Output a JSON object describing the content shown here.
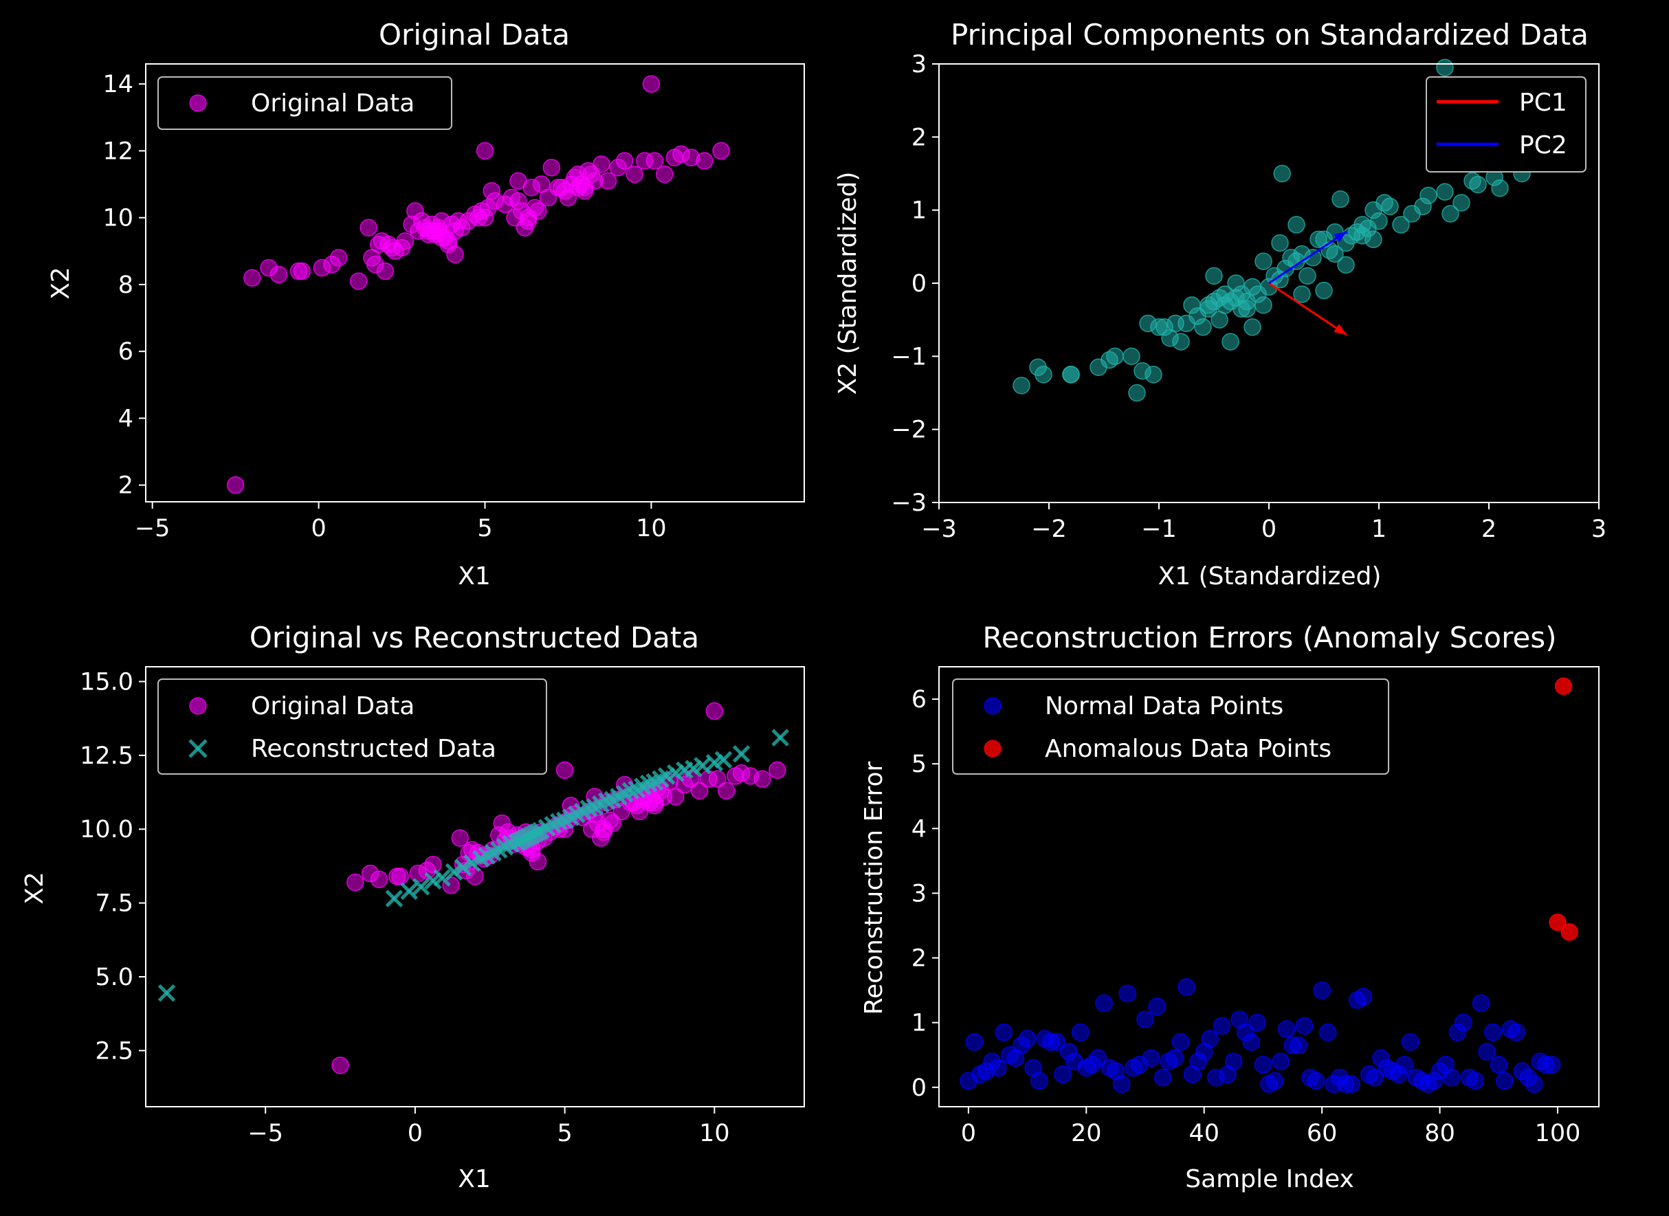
{
  "chart_data": [
    {
      "type": "scatter",
      "title": "Original Data",
      "xlabel": "X1",
      "ylabel": "X2",
      "xlim": [
        -5.2,
        14.6
      ],
      "ylim": [
        1.5,
        14.6
      ],
      "xticks": [
        -5,
        0,
        5,
        10
      ],
      "yticks": [
        2,
        4,
        6,
        8,
        10,
        12,
        14
      ],
      "legend_position": "upper-left",
      "series": [
        {
          "name": "Original Data",
          "marker": "circle",
          "color": "#ff00ff",
          "x": [
            -2.0,
            -1.5,
            -1.2,
            -0.6,
            -0.5,
            0.1,
            0.4,
            0.6,
            1.2,
            1.5,
            1.6,
            1.7,
            1.9,
            2.0,
            2.1,
            2.3,
            2.5,
            2.6,
            2.8,
            2.9,
            3.0,
            3.1,
            3.2,
            3.3,
            3.4,
            3.5,
            3.6,
            3.7,
            3.8,
            3.9,
            4.0,
            4.1,
            4.2,
            4.3,
            4.5,
            4.7,
            4.9,
            5.0,
            5.1,
            5.2,
            5.3,
            5.6,
            5.8,
            6.0,
            6.1,
            6.2,
            6.3,
            6.4,
            6.5,
            6.7,
            6.9,
            7.0,
            7.2,
            7.4,
            7.5,
            7.6,
            7.7,
            7.8,
            7.9,
            8.0,
            8.1,
            8.2,
            8.3,
            8.5,
            8.7,
            9.0,
            9.2,
            9.5,
            9.8,
            10.1,
            10.4,
            10.7,
            10.9,
            11.2,
            11.6,
            12.1,
            5.0,
            10.0,
            -2.5,
            3.5,
            3.7,
            3.9,
            3.6,
            4.1,
            5.9,
            6.3,
            7.8,
            8.0,
            2.2,
            3.3,
            4.8,
            6.0,
            6.6,
            7.3,
            1.8
          ],
          "y": [
            8.2,
            8.5,
            8.3,
            8.4,
            8.4,
            8.5,
            8.6,
            8.8,
            8.1,
            9.7,
            8.8,
            8.6,
            9.3,
            8.4,
            9.2,
            9.0,
            9.1,
            9.3,
            9.8,
            10.2,
            9.6,
            9.9,
            9.7,
            9.5,
            9.8,
            9.6,
            9.7,
            9.9,
            9.4,
            9.3,
            9.8,
            9.6,
            9.9,
            9.7,
            9.9,
            10.1,
            10.2,
            10.0,
            10.3,
            10.8,
            10.5,
            10.4,
            10.6,
            11.1,
            10.2,
            9.7,
            10.0,
            10.9,
            10.3,
            11.0,
            10.6,
            11.5,
            10.9,
            10.8,
            10.6,
            11.0,
            11.2,
            11.3,
            11.0,
            10.8,
            11.4,
            11.3,
            11.1,
            11.6,
            11.1,
            11.5,
            11.7,
            11.3,
            11.7,
            11.7,
            11.3,
            11.8,
            11.9,
            11.8,
            11.7,
            12.0,
            12.0,
            14.0,
            2.0,
            9.5,
            9.4,
            9.2,
            9.6,
            8.9,
            10.0,
            9.9,
            10.9,
            10.9,
            9.1,
            9.6,
            10.0,
            10.5,
            10.2,
            10.9,
            9.2
          ]
        }
      ]
    },
    {
      "type": "scatter",
      "title": "Principal Components on Standardized Data",
      "xlabel": "X1 (Standardized)",
      "ylabel": "X2 (Standardized)",
      "xlim": [
        -3,
        3
      ],
      "ylim": [
        -3,
        3
      ],
      "xticks": [
        -3,
        -2,
        -1,
        0,
        1,
        2,
        3
      ],
      "yticks": [
        -3,
        -2,
        -1,
        0,
        1,
        2,
        3
      ],
      "legend_position": "upper-right",
      "series": [
        {
          "name": "",
          "marker": "circle",
          "color": "#20b2aa",
          "x": [
            -2.25,
            -2.1,
            -2.05,
            -1.8,
            -1.8,
            -1.55,
            -1.45,
            -1.4,
            -1.2,
            -1.25,
            -1.15,
            -1.1,
            -1.05,
            -1.0,
            -0.95,
            -0.9,
            -0.85,
            -0.8,
            -0.75,
            -0.7,
            -0.65,
            -0.6,
            -0.55,
            -0.5,
            -0.45,
            -0.4,
            -0.35,
            -0.3,
            -0.25,
            -0.2,
            -0.15,
            -0.1,
            -0.05,
            0.0,
            0.05,
            0.1,
            0.15,
            0.2,
            0.25,
            0.3,
            0.35,
            0.4,
            0.45,
            0.5,
            0.55,
            0.6,
            0.65,
            0.7,
            0.75,
            0.8,
            0.85,
            0.9,
            0.95,
            1.0,
            1.05,
            1.1,
            1.2,
            1.3,
            1.4,
            1.45,
            1.6,
            1.65,
            1.75,
            1.85,
            1.9,
            2.05,
            2.1,
            2.3,
            0.12,
            1.6,
            -0.5,
            -0.4,
            -0.3,
            -0.2,
            -0.45,
            -0.35,
            0.25,
            0.5,
            0.6,
            0.85,
            0.95,
            0.1,
            -0.05,
            0.3,
            -0.55,
            -0.25,
            -0.15,
            0.7
          ],
          "y": [
            -1.4,
            -1.15,
            -1.25,
            -1.25,
            -1.25,
            -1.15,
            -1.05,
            -1.0,
            -1.5,
            -1.0,
            -1.2,
            -0.55,
            -1.25,
            -0.6,
            -0.6,
            -0.75,
            -0.55,
            -0.8,
            -0.55,
            -0.3,
            -0.45,
            -0.6,
            -0.35,
            -0.25,
            -0.2,
            -0.3,
            -0.8,
            -0.2,
            -0.15,
            -0.25,
            -0.05,
            -0.15,
            -0.3,
            -0.05,
            0.1,
            0.05,
            0.2,
            0.35,
            0.3,
            0.4,
            0.1,
            0.35,
            0.6,
            0.6,
            0.45,
            0.4,
            1.15,
            0.55,
            0.65,
            0.7,
            0.8,
            0.75,
            1.0,
            0.85,
            1.1,
            1.05,
            0.8,
            0.95,
            1.05,
            1.2,
            1.25,
            0.95,
            1.1,
            1.4,
            1.35,
            1.45,
            1.3,
            1.5,
            1.5,
            2.95,
            0.1,
            -0.15,
            0.0,
            -0.35,
            -0.5,
            -0.25,
            0.8,
            -0.1,
            0.7,
            0.65,
            0.6,
            0.55,
            0.3,
            -0.15,
            -0.3,
            -0.35,
            -0.6,
            0.25
          ]
        }
      ],
      "vectors": [
        {
          "name": "PC1",
          "color": "#ff0000",
          "from": [
            0,
            0
          ],
          "to": [
            0.707,
            -0.707
          ]
        },
        {
          "name": "PC2",
          "color": "#0000ff",
          "from": [
            0,
            0
          ],
          "to": [
            0.707,
            0.707
          ]
        }
      ]
    },
    {
      "type": "scatter",
      "title": "Original vs Reconstructed Data",
      "xlabel": "X1",
      "ylabel": "X2",
      "xlim": [
        -9.0,
        13.0
      ],
      "ylim": [
        0.6,
        15.5
      ],
      "xticks": [
        -5,
        0,
        5,
        10
      ],
      "yticks": [
        2.5,
        5.0,
        7.5,
        10.0,
        12.5,
        15.0
      ],
      "tick_labels_y": [
        "2.5",
        "5.0",
        "7.5",
        "10.0",
        "12.5",
        "15.0"
      ],
      "legend_position": "upper-left",
      "series": [
        {
          "name": "Original Data",
          "marker": "circle",
          "color": "#ff00ff",
          "x": [
            -2.0,
            -1.5,
            -1.2,
            -0.6,
            -0.5,
            0.1,
            0.4,
            0.6,
            1.2,
            1.5,
            1.6,
            1.7,
            1.9,
            2.0,
            2.1,
            2.3,
            2.5,
            2.6,
            2.8,
            2.9,
            3.0,
            3.1,
            3.2,
            3.3,
            3.4,
            3.5,
            3.6,
            3.7,
            3.8,
            3.9,
            4.0,
            4.1,
            4.2,
            4.3,
            4.5,
            4.7,
            4.9,
            5.0,
            5.1,
            5.2,
            5.3,
            5.6,
            5.8,
            6.0,
            6.1,
            6.2,
            6.3,
            6.4,
            6.5,
            6.7,
            6.9,
            7.0,
            7.2,
            7.4,
            7.5,
            7.6,
            7.7,
            7.8,
            7.9,
            8.0,
            8.1,
            8.2,
            8.3,
            8.5,
            8.7,
            9.0,
            9.2,
            9.5,
            9.8,
            10.1,
            10.4,
            10.7,
            10.9,
            11.2,
            11.6,
            12.1,
            5.0,
            10.0,
            -2.5,
            3.5,
            3.7,
            3.9,
            3.6,
            4.1,
            5.9,
            6.3,
            7.8,
            8.0,
            2.2,
            3.3,
            4.8,
            6.0,
            6.6,
            7.3,
            1.8
          ],
          "y": [
            8.2,
            8.5,
            8.3,
            8.4,
            8.4,
            8.5,
            8.6,
            8.8,
            8.1,
            9.7,
            8.8,
            8.6,
            9.3,
            8.4,
            9.2,
            9.0,
            9.1,
            9.3,
            9.8,
            10.2,
            9.6,
            9.9,
            9.7,
            9.5,
            9.8,
            9.6,
            9.7,
            9.9,
            9.4,
            9.3,
            9.8,
            9.6,
            9.9,
            9.7,
            9.9,
            10.1,
            10.2,
            10.0,
            10.3,
            10.8,
            10.5,
            10.4,
            10.6,
            11.1,
            10.2,
            9.7,
            10.0,
            10.9,
            10.3,
            11.0,
            10.6,
            11.5,
            10.9,
            10.8,
            10.6,
            11.0,
            11.2,
            11.3,
            11.0,
            10.8,
            11.4,
            11.3,
            11.1,
            11.6,
            11.1,
            11.5,
            11.7,
            11.3,
            11.7,
            11.7,
            11.3,
            11.8,
            11.9,
            11.8,
            11.7,
            12.0,
            12.0,
            14.0,
            2.0,
            9.5,
            9.4,
            9.2,
            9.6,
            8.9,
            10.0,
            9.9,
            10.9,
            10.9,
            9.1,
            9.6,
            10.0,
            10.5,
            10.2,
            10.9,
            9.2
          ]
        },
        {
          "name": "Reconstructed Data",
          "marker": "x",
          "color": "#20b2aa",
          "x": [
            -8.3,
            -0.7,
            -0.2,
            0.2,
            0.6,
            0.9,
            1.3,
            1.6,
            1.9,
            2.2,
            2.4,
            2.6,
            2.8,
            3.0,
            3.2,
            3.4,
            3.5,
            3.6,
            3.7,
            3.8,
            3.9,
            4.0,
            4.1,
            4.2,
            4.4,
            4.6,
            4.8,
            5.0,
            5.2,
            5.4,
            5.6,
            5.8,
            6.0,
            6.2,
            6.4,
            6.6,
            6.8,
            7.0,
            7.2,
            7.4,
            7.6,
            7.8,
            8.0,
            8.2,
            8.4,
            8.7,
            9.0,
            9.3,
            9.6,
            10.0,
            10.3,
            10.9,
            12.2
          ],
          "y": [
            4.45,
            7.65,
            7.9,
            8.05,
            8.25,
            8.35,
            8.55,
            8.7,
            8.85,
            9.0,
            9.1,
            9.2,
            9.3,
            9.4,
            9.5,
            9.55,
            9.6,
            9.65,
            9.7,
            9.75,
            9.8,
            9.85,
            9.9,
            9.95,
            10.05,
            10.15,
            10.25,
            10.3,
            10.4,
            10.5,
            10.6,
            10.7,
            10.75,
            10.85,
            10.95,
            11.0,
            11.1,
            11.2,
            11.3,
            11.35,
            11.45,
            11.55,
            11.6,
            11.7,
            11.8,
            11.9,
            12.0,
            12.05,
            12.15,
            12.25,
            12.35,
            12.55,
            13.1
          ]
        }
      ]
    },
    {
      "type": "scatter",
      "title": "Reconstruction Errors (Anomaly Scores)",
      "xlabel": "Sample Index",
      "ylabel": "Reconstruction Error",
      "xlim": [
        -5,
        107
      ],
      "ylim": [
        -0.3,
        6.5
      ],
      "xticks": [
        0,
        20,
        40,
        60,
        80,
        100
      ],
      "yticks": [
        0,
        1,
        2,
        3,
        4,
        5,
        6
      ],
      "legend_position": "upper-left",
      "series": [
        {
          "name": "Normal Data Points",
          "marker": "circle",
          "color": "#0000ff",
          "x": [
            0,
            1,
            2,
            3,
            4,
            5,
            6,
            7,
            8,
            9,
            10,
            11,
            12,
            13,
            14,
            15,
            16,
            17,
            18,
            19,
            20,
            21,
            22,
            23,
            24,
            25,
            26,
            27,
            28,
            29,
            30,
            31,
            32,
            33,
            34,
            35,
            36,
            37,
            38,
            39,
            40,
            41,
            42,
            43,
            44,
            45,
            46,
            47,
            48,
            49,
            50,
            51,
            52,
            53,
            54,
            55,
            56,
            57,
            58,
            59,
            60,
            61,
            62,
            63,
            64,
            65,
            66,
            67,
            68,
            69,
            70,
            71,
            72,
            73,
            74,
            75,
            76,
            77,
            78,
            79,
            80,
            81,
            82,
            83,
            84,
            85,
            86,
            87,
            88,
            89,
            90,
            91,
            92,
            93,
            94,
            95,
            96,
            97,
            98,
            99
          ],
          "y": [
            0.1,
            0.7,
            0.2,
            0.25,
            0.4,
            0.3,
            0.85,
            0.5,
            0.45,
            0.65,
            0.75,
            0.3,
            0.1,
            0.75,
            0.7,
            0.7,
            0.2,
            0.55,
            0.4,
            0.85,
            0.3,
            0.35,
            0.45,
            1.3,
            0.3,
            0.25,
            0.05,
            1.45,
            0.3,
            0.35,
            1.05,
            0.45,
            1.25,
            0.15,
            0.4,
            0.45,
            0.7,
            1.55,
            0.2,
            0.4,
            0.55,
            0.75,
            0.15,
            0.95,
            0.2,
            0.4,
            1.05,
            0.85,
            0.7,
            1.0,
            0.35,
            0.05,
            0.1,
            0.4,
            0.9,
            0.65,
            0.65,
            0.95,
            0.15,
            0.1,
            1.5,
            0.85,
            0.05,
            0.15,
            0.05,
            0.05,
            1.35,
            1.4,
            0.2,
            0.15,
            0.45,
            0.3,
            0.25,
            0.2,
            0.35,
            0.7,
            0.15,
            0.1,
            0.05,
            0.1,
            0.25,
            0.35,
            0.15,
            0.85,
            1.0,
            0.15,
            0.1,
            1.3,
            0.55,
            0.85,
            0.35,
            0.1,
            0.9,
            0.85,
            0.25,
            0.15,
            0.05,
            0.4,
            0.35,
            0.35
          ]
        },
        {
          "name": "Anomalous Data Points",
          "marker": "circle",
          "color": "#ff0000",
          "x": [
            100,
            101,
            102
          ],
          "y": [
            2.55,
            6.2,
            2.4
          ]
        }
      ]
    }
  ]
}
